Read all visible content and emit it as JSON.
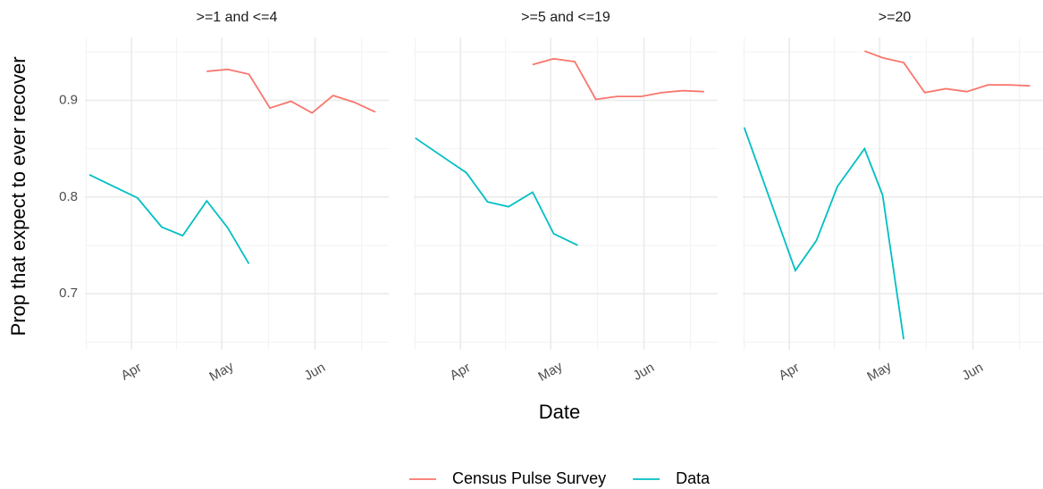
{
  "chart_data": [
    {
      "type": "line",
      "title": ">=1 and <=4",
      "y_label": "Prop that expect to ever recover",
      "xlim": [
        76.5,
        177.5
      ],
      "xticks": [
        {
          "value": 92,
          "label": "Apr"
        },
        {
          "value": 122,
          "label": "May"
        },
        {
          "value": 153,
          "label": "Jun"
        }
      ],
      "ylim": [
        0.642,
        0.965
      ],
      "yticks": [
        0.7,
        0.8,
        0.9
      ],
      "grid": true,
      "series": [
        {
          "name": "Census Pulse Survey",
          "color": "#F8766D",
          "x": [
            117,
            124,
            131,
            138,
            145,
            152,
            159,
            166,
            173
          ],
          "values": [
            0.93,
            0.932,
            0.927,
            0.892,
            0.899,
            0.887,
            0.905,
            0.898,
            0.888
          ]
        },
        {
          "name": "Data",
          "color": "#00BFC4",
          "x": [
            78,
            94,
            102,
            109,
            117,
            124,
            131
          ],
          "values": [
            0.823,
            0.799,
            0.769,
            0.76,
            0.796,
            0.768,
            0.731
          ]
        }
      ]
    },
    {
      "type": "line",
      "title": ">=5 and <=19",
      "x_label": "Date",
      "xlim": [
        76.5,
        177.5
      ],
      "xticks": [
        {
          "value": 92,
          "label": "Apr"
        },
        {
          "value": 122,
          "label": "May"
        },
        {
          "value": 153,
          "label": "Jun"
        }
      ],
      "ylim": [
        0.642,
        0.965
      ],
      "yticks": [
        0.7,
        0.8,
        0.9
      ],
      "grid": true,
      "series": [
        {
          "color": "#F8766D",
          "x": [
            116,
            123,
            130,
            137,
            144,
            152,
            159,
            166,
            173
          ],
          "values": [
            0.937,
            0.943,
            0.94,
            0.901,
            0.904,
            0.904,
            0.908,
            0.91,
            0.909
          ]
        },
        {
          "color": "#00BFC4",
          "x": [
            77,
            94,
            101,
            108,
            116,
            123,
            131
          ],
          "values": [
            0.861,
            0.825,
            0.795,
            0.79,
            0.805,
            0.762,
            0.75
          ]
        }
      ]
    },
    {
      "type": "line",
      "title": ">=20",
      "xlim": [
        76.5,
        177.5
      ],
      "xticks": [
        {
          "value": 92,
          "label": "Apr"
        },
        {
          "value": 122,
          "label": "May"
        },
        {
          "value": 153,
          "label": "Jun"
        }
      ],
      "ylim": [
        0.642,
        0.965
      ],
      "yticks": [
        0.7,
        0.8,
        0.9
      ],
      "grid": true,
      "series": [
        {
          "color": "#F8766D",
          "x": [
            117,
            123,
            130,
            137,
            144,
            151,
            158,
            165,
            172
          ],
          "values": [
            0.951,
            0.944,
            0.939,
            0.908,
            0.912,
            0.909,
            0.916,
            0.916,
            0.915
          ]
        },
        {
          "color": "#00BFC4",
          "x": [
            77,
            94,
            101,
            108,
            117,
            123,
            130
          ],
          "values": [
            0.872,
            0.724,
            0.755,
            0.811,
            0.85,
            0.802,
            0.653
          ]
        }
      ]
    }
  ]
}
